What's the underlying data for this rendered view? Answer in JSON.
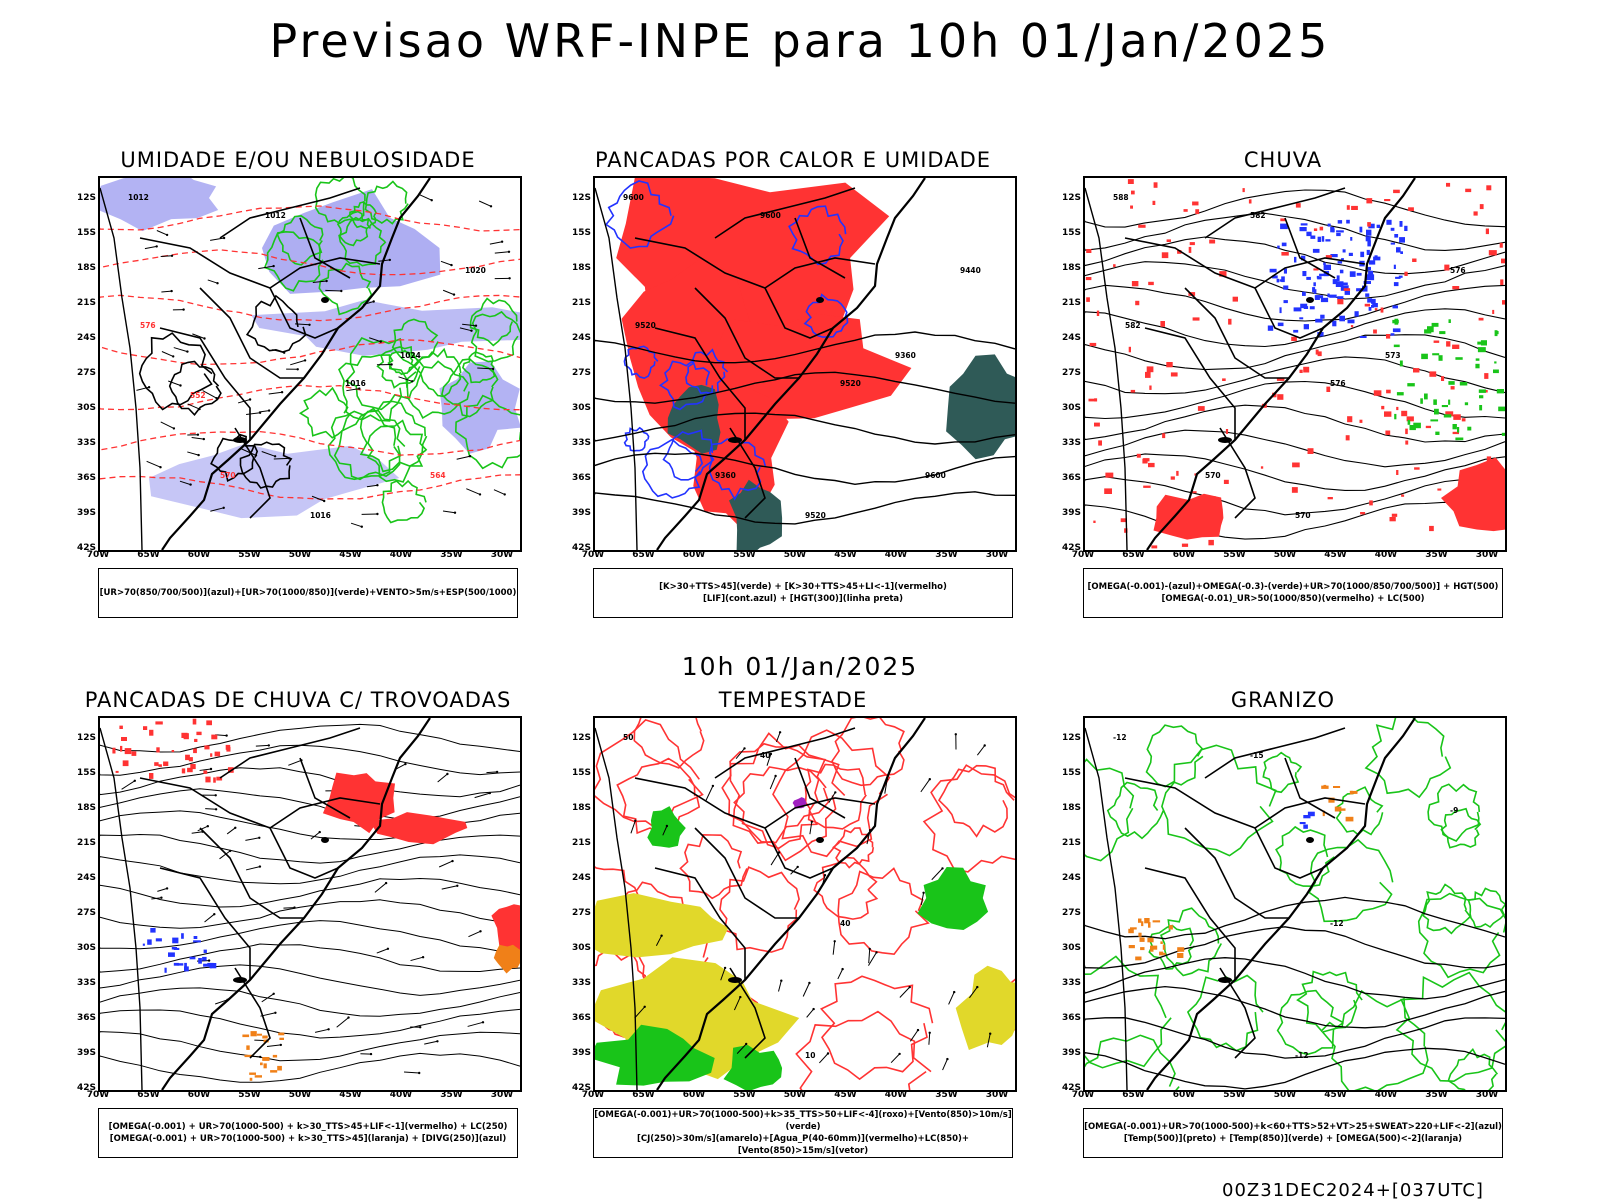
{
  "title": "Previsao WRF-INPE  para 10h 01/Jan/2025",
  "subtitle": "10h 01/Jan/2025",
  "footer": "00Z31DEC2024+[037UTC]",
  "axes": {
    "lat_labels": [
      "12S",
      "15S",
      "18S",
      "21S",
      "24S",
      "27S",
      "30S",
      "33S",
      "36S",
      "39S",
      "42S"
    ],
    "lon_labels": [
      "70W",
      "65W",
      "60W",
      "55W",
      "50W",
      "45W",
      "40W",
      "35W",
      "30W"
    ]
  },
  "colors": {
    "red": "#ff3333",
    "green": "#19c419",
    "blue": "#2233ff",
    "lavender": "#a0a0f0",
    "dark_teal": "#2f5a57",
    "yellow": "#e1d82a",
    "orange": "#f08018",
    "purple": "#a020c0"
  },
  "panels": [
    {
      "title": "UMIDADE E/OU NEBULOSIDADE",
      "legend": [
        "[UR>70(850/700/500)](azul)+[UR>70(1000/850)](verde)+VENTO>5m/s+ESP(500/1000)"
      ],
      "contour_labels": [
        "1012",
        "1012",
        "1016",
        "1016",
        "1020",
        "1024",
        "570",
        "576",
        "564",
        "552"
      ]
    },
    {
      "title": "PANCADAS POR CALOR E UMIDADE",
      "legend": [
        "[K>30+TTS>45](verde) + [K>30+TTS>45+LI<-1](vermelho)",
        "[LIF](cont.azul) + [HGT(300)](linha preta)"
      ],
      "contour_labels": [
        "9600",
        "9600",
        "9520",
        "9520",
        "9440",
        "9360",
        "9360",
        "9520",
        "9600"
      ]
    },
    {
      "title": "CHUVA",
      "legend": [
        "[OMEGA(-0.001)-(azul)+OMEGA(-0.3)-(verde)+UR>70(1000/850/700/500)] + HGT(500)",
        "[OMEGA(-0.01)_UR>50(1000/850)(vermelho) + LC(500)"
      ],
      "contour_labels": [
        "588",
        "582",
        "576",
        "570",
        "576",
        "573",
        "570",
        "582"
      ]
    },
    {
      "title": "PANCADAS DE CHUVA C/ TROVOADAS",
      "legend": [
        "[OMEGA(-0.001) + UR>70(1000-500) + k>30_TTS>45+LIF<-1](vermelho) + LC(250)",
        "[OMEGA(-0.001) + UR>70(1000-500) + k>30_TTS>45](laranja) + [DIVG(250)](azul)"
      ],
      "contour_labels": []
    },
    {
      "title": "TEMPESTADE",
      "legend": [
        "[OMEGA(-0.001)+UR>70(1000-500)+k>35_TTS>50+LIF<-4](roxo)+[Vento(850)>10m/s](verde)",
        "[CJ(250)>30m/s](amarelo)+[Agua_P(40-60mm)](vermelho)+LC(850)+[Vento(850)>15m/s](vetor)"
      ],
      "contour_labels": [
        "50",
        "40",
        "40",
        "10"
      ]
    },
    {
      "title": "GRANIZO",
      "legend": [
        "[OMEGA(-0.001)+UR>70(1000-500)+k<60+TTS>52+VT>25+SWEAT>220+LIF<-2](azul)",
        "[Temp(500)](preto) + [Temp(850)](verde) + [OMEGA(500)<-2](laranja)"
      ],
      "contour_labels": [
        "-12",
        "-15",
        "-12",
        "-12",
        "-9"
      ]
    }
  ]
}
